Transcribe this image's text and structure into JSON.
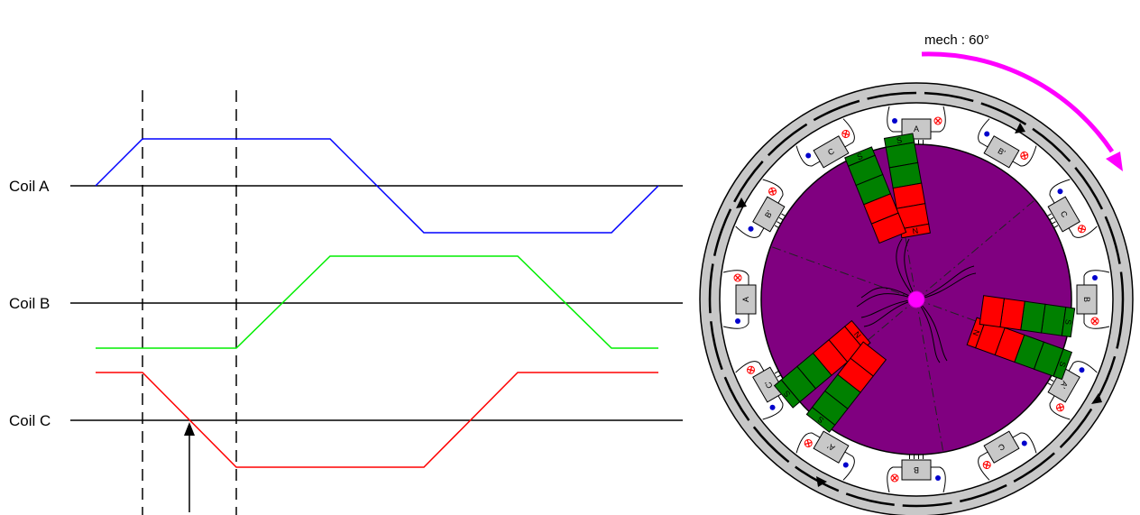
{
  "waveform": {
    "coils": [
      {
        "label": "Coil A",
        "color": "#0000ff"
      },
      {
        "label": "Coil B",
        "color": "#00ee00"
      },
      {
        "label": "Coil C",
        "color": "#ff0000"
      }
    ]
  },
  "motor": {
    "rotation_label": "mech : 60°",
    "arrow_color": "#ff00ff",
    "rotor_color": "#800080",
    "north_color": "#ff0000",
    "south_color": "#008000",
    "north_label": "N",
    "south_label": "S",
    "slot_labels": [
      "A",
      "B'",
      "C",
      "B",
      "A'",
      "C",
      "B",
      "A'",
      "C'",
      "A",
      "B'",
      "C"
    ]
  }
}
